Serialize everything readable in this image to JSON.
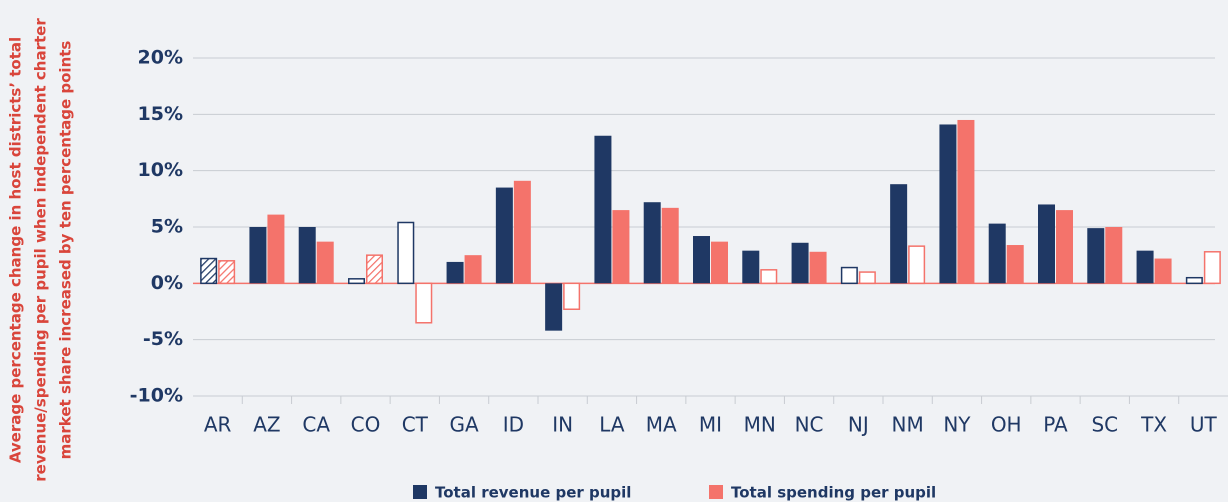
{
  "chart_data": {
    "type": "bar",
    "y_label": [
      "Average percentage change in host districts’ total",
      "revenue/spending per pupil when independent charter",
      "market share increased by ten percentage points"
    ],
    "categories": [
      "AR",
      "AZ",
      "CA",
      "CO",
      "CT",
      "GA",
      "ID",
      "IN",
      "LA",
      "MA",
      "MI",
      "MN",
      "NC",
      "NJ",
      "NM",
      "NY",
      "OH",
      "PA",
      "SC",
      "TX",
      "UT"
    ],
    "series": [
      {
        "name": "Total revenue per pupil",
        "color": "#1f3864",
        "values": [
          2.2,
          5.0,
          5.0,
          0.4,
          5.4,
          1.9,
          8.5,
          -4.2,
          13.1,
          7.2,
          4.2,
          2.9,
          3.6,
          1.4,
          8.8,
          14.1,
          5.3,
          7.0,
          4.9,
          2.9,
          0.5
        ],
        "styles": [
          "hatched",
          "solid",
          "solid",
          "hollow",
          "hollow",
          "solid",
          "solid",
          "solid",
          "solid",
          "solid",
          "solid",
          "solid",
          "solid",
          "hollow",
          "solid",
          "solid",
          "solid",
          "solid",
          "solid",
          "solid",
          "hollow"
        ]
      },
      {
        "name": "Total spending per pupil",
        "color": "#f4736b",
        "values": [
          2.0,
          6.1,
          3.7,
          2.5,
          -3.5,
          2.5,
          9.1,
          -2.3,
          6.5,
          6.7,
          3.7,
          1.2,
          2.8,
          1.0,
          3.3,
          14.5,
          3.4,
          6.5,
          5.0,
          2.2,
          2.8
        ],
        "styles": [
          "hatched",
          "solid",
          "solid",
          "hatched",
          "hollow",
          "solid",
          "solid",
          "hollow",
          "solid",
          "solid",
          "solid",
          "hollow",
          "solid",
          "hollow",
          "hollow",
          "solid",
          "solid",
          "solid",
          "solid",
          "solid",
          "hollow"
        ]
      }
    ],
    "ylim": [
      -10,
      20
    ],
    "yticks": [
      {
        "value": -10,
        "label": "-10%"
      },
      {
        "value": -5,
        "label": "-5%"
      },
      {
        "value": 0,
        "label": "0%"
      },
      {
        "value": 5,
        "label": "5%"
      },
      {
        "value": 10,
        "label": "10%"
      },
      {
        "value": 15,
        "label": "15%"
      },
      {
        "value": 20,
        "label": "20%"
      }
    ],
    "grid": true
  }
}
